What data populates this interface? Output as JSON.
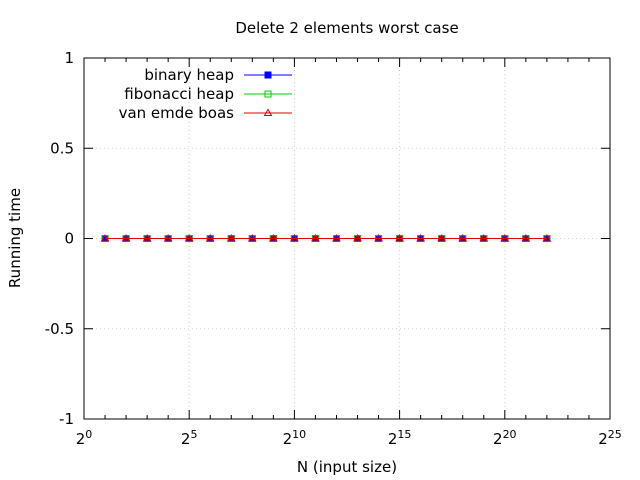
{
  "chart_data": {
    "type": "line",
    "title": "Delete 2 elements worst case",
    "xlabel": "N (input size)",
    "ylabel": "Running time",
    "x_scale": "log2",
    "xlim": [
      1,
      33554432
    ],
    "ylim": [
      -1,
      1
    ],
    "x_ticks": [
      {
        "base": "2",
        "exp": "0",
        "value": 1
      },
      {
        "base": "2",
        "exp": "5",
        "value": 32
      },
      {
        "base": "2",
        "exp": "10",
        "value": 1024
      },
      {
        "base": "2",
        "exp": "15",
        "value": 32768
      },
      {
        "base": "2",
        "exp": "20",
        "value": 1048576
      },
      {
        "base": "2",
        "exp": "25",
        "value": 33554432
      }
    ],
    "y_ticks": [
      "-1",
      "-0.5",
      "0",
      "0.5",
      "1"
    ],
    "y_tick_values": [
      -1,
      -0.5,
      0,
      0.5,
      1
    ],
    "grid": true,
    "legend_position": "top-left",
    "x": [
      2,
      4,
      8,
      16,
      32,
      64,
      128,
      256,
      512,
      1024,
      2048,
      4096,
      8192,
      16384,
      32768,
      65536,
      131072,
      262144,
      524288,
      1048576,
      2097152,
      4194304
    ],
    "series": [
      {
        "name": "binary heap",
        "color": "#0000ff",
        "marker": "filled-square",
        "values": [
          0,
          0,
          0,
          0,
          0,
          0,
          0,
          0,
          0,
          0,
          0,
          0,
          0,
          0,
          0,
          0,
          0,
          0,
          0,
          0,
          0,
          0
        ]
      },
      {
        "name": "fibonacci heap",
        "color": "#00cc00",
        "marker": "open-square",
        "values": [
          0,
          0,
          0,
          0,
          0,
          0,
          0,
          0,
          0,
          0,
          0,
          0,
          0,
          0,
          0,
          0,
          0,
          0,
          0,
          0,
          0,
          0
        ]
      },
      {
        "name": "van emde boas",
        "color": "#dd0000",
        "marker": "open-triangle",
        "values": [
          0,
          0,
          0,
          0,
          0,
          0,
          0,
          0,
          0,
          0,
          0,
          0,
          0,
          0,
          0,
          0,
          0,
          0,
          0,
          0,
          0,
          0
        ]
      }
    ]
  }
}
